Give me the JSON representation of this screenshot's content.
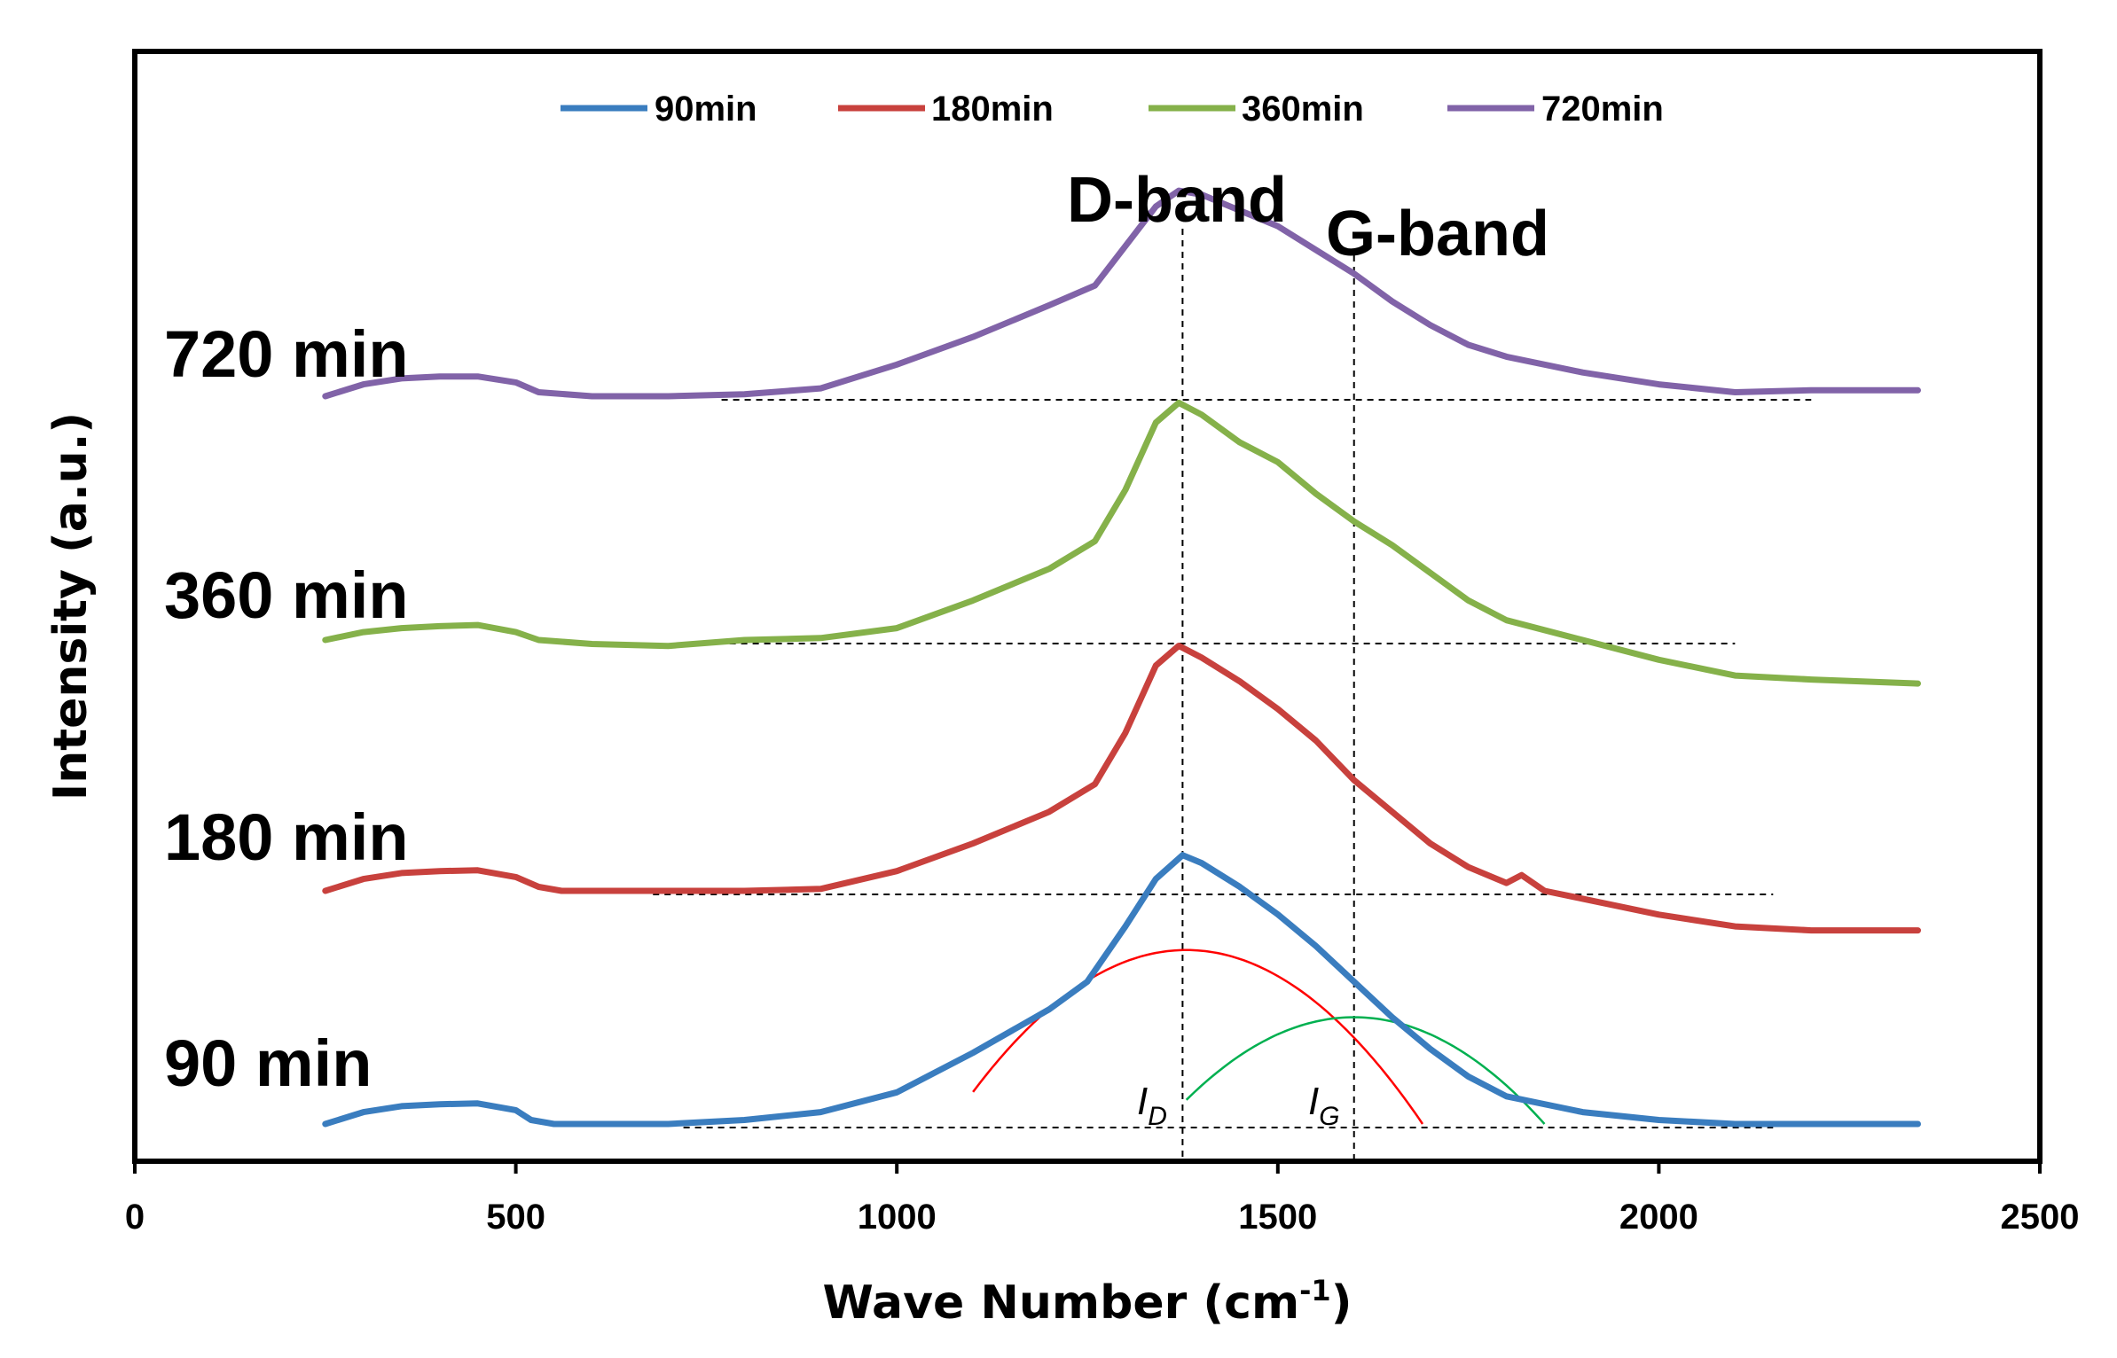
{
  "chart_data": {
    "type": "line",
    "title": "",
    "xlabel": "Wave Number (cm",
    "xlabel_sup": "-1",
    "xlabel_close": ")",
    "ylabel": "Intensity (a.u.)",
    "xlim": [
      0,
      2500
    ],
    "x_ticks": [
      "0",
      "500",
      "1000",
      "1500",
      "2000",
      "2500"
    ],
    "y_ticks": false,
    "legend_position": "top-center",
    "series": [
      {
        "name": "90min",
        "label": "90 min",
        "color": "#3a7dbf",
        "points": [
          [
            250,
            0.0
          ],
          [
            300,
            0.03
          ],
          [
            350,
            0.045
          ],
          [
            400,
            0.05
          ],
          [
            450,
            0.052
          ],
          [
            500,
            0.035
          ],
          [
            520,
            0.01
          ],
          [
            550,
            0.0
          ],
          [
            700,
            0.0
          ],
          [
            800,
            0.01
          ],
          [
            900,
            0.03
          ],
          [
            1000,
            0.08
          ],
          [
            1100,
            0.18
          ],
          [
            1200,
            0.29
          ],
          [
            1250,
            0.36
          ],
          [
            1300,
            0.5
          ],
          [
            1340,
            0.62
          ],
          [
            1375,
            0.68
          ],
          [
            1400,
            0.66
          ],
          [
            1450,
            0.6
          ],
          [
            1500,
            0.53
          ],
          [
            1550,
            0.45
          ],
          [
            1600,
            0.36
          ],
          [
            1650,
            0.27
          ],
          [
            1700,
            0.19
          ],
          [
            1750,
            0.12
          ],
          [
            1800,
            0.07
          ],
          [
            1900,
            0.03
          ],
          [
            2000,
            0.01
          ],
          [
            2100,
            0.0
          ],
          [
            2340,
            0.0
          ]
        ]
      },
      {
        "name": "180min",
        "label": "180 min",
        "color": "#c8413d",
        "points": [
          [
            250,
            0.0
          ],
          [
            300,
            0.03
          ],
          [
            350,
            0.045
          ],
          [
            400,
            0.05
          ],
          [
            450,
            0.052
          ],
          [
            500,
            0.035
          ],
          [
            530,
            0.01
          ],
          [
            560,
            0.0
          ],
          [
            700,
            0.0
          ],
          [
            800,
            0.0
          ],
          [
            900,
            0.005
          ],
          [
            1000,
            0.05
          ],
          [
            1100,
            0.12
          ],
          [
            1200,
            0.2
          ],
          [
            1260,
            0.27
          ],
          [
            1300,
            0.4
          ],
          [
            1340,
            0.57
          ],
          [
            1370,
            0.62
          ],
          [
            1400,
            0.59
          ],
          [
            1450,
            0.53
          ],
          [
            1500,
            0.46
          ],
          [
            1550,
            0.38
          ],
          [
            1600,
            0.28
          ],
          [
            1650,
            0.2
          ],
          [
            1700,
            0.12
          ],
          [
            1750,
            0.06
          ],
          [
            1800,
            0.02
          ],
          [
            1820,
            0.04
          ],
          [
            1850,
            0.0
          ],
          [
            1900,
            -0.02
          ],
          [
            2000,
            -0.06
          ],
          [
            2100,
            -0.09
          ],
          [
            2200,
            -0.1
          ],
          [
            2340,
            -0.1
          ]
        ]
      },
      {
        "name": "360min",
        "label": "360 min",
        "color": "#85b14a",
        "points": [
          [
            250,
            0.0
          ],
          [
            300,
            0.02
          ],
          [
            350,
            0.03
          ],
          [
            400,
            0.035
          ],
          [
            450,
            0.038
          ],
          [
            500,
            0.02
          ],
          [
            530,
            0.0
          ],
          [
            600,
            -0.01
          ],
          [
            700,
            -0.015
          ],
          [
            800,
            0.0
          ],
          [
            900,
            0.005
          ],
          [
            1000,
            0.03
          ],
          [
            1100,
            0.1
          ],
          [
            1200,
            0.18
          ],
          [
            1260,
            0.25
          ],
          [
            1300,
            0.38
          ],
          [
            1340,
            0.55
          ],
          [
            1370,
            0.6
          ],
          [
            1400,
            0.57
          ],
          [
            1450,
            0.5
          ],
          [
            1500,
            0.45
          ],
          [
            1550,
            0.37
          ],
          [
            1600,
            0.3
          ],
          [
            1650,
            0.24
          ],
          [
            1700,
            0.17
          ],
          [
            1750,
            0.1
          ],
          [
            1800,
            0.05
          ],
          [
            1900,
            0.0
          ],
          [
            2000,
            -0.05
          ],
          [
            2100,
            -0.09
          ],
          [
            2200,
            -0.1
          ],
          [
            2340,
            -0.11
          ]
        ]
      },
      {
        "name": "720min",
        "label": "720 min",
        "color": "#8163a8",
        "points": [
          [
            250,
            0.0
          ],
          [
            300,
            0.03
          ],
          [
            350,
            0.045
          ],
          [
            400,
            0.05
          ],
          [
            450,
            0.05
          ],
          [
            500,
            0.035
          ],
          [
            530,
            0.01
          ],
          [
            600,
            0.0
          ],
          [
            700,
            0.0
          ],
          [
            800,
            0.005
          ],
          [
            900,
            0.02
          ],
          [
            1000,
            0.08
          ],
          [
            1100,
            0.15
          ],
          [
            1200,
            0.23
          ],
          [
            1260,
            0.28
          ],
          [
            1300,
            0.38
          ],
          [
            1340,
            0.48
          ],
          [
            1370,
            0.52
          ],
          [
            1400,
            0.51
          ],
          [
            1450,
            0.47
          ],
          [
            1500,
            0.43
          ],
          [
            1550,
            0.37
          ],
          [
            1600,
            0.31
          ],
          [
            1650,
            0.24
          ],
          [
            1700,
            0.18
          ],
          [
            1750,
            0.13
          ],
          [
            1800,
            0.1
          ],
          [
            1900,
            0.06
          ],
          [
            2000,
            0.03
          ],
          [
            2100,
            0.01
          ],
          [
            2200,
            0.015
          ],
          [
            2340,
            0.015
          ]
        ]
      }
    ],
    "fit_curves": [
      {
        "name": "D-band fit",
        "color": "#ff0000",
        "center": 1380,
        "height": 0.44,
        "from": 1100,
        "to": 1690
      },
      {
        "name": "G-band fit",
        "color": "#00b050",
        "center": 1600,
        "height": 0.27,
        "from": 1380,
        "to": 1850
      }
    ],
    "baselines": [
      {
        "series": "90min",
        "x_from": 720,
        "x_to": 2150
      },
      {
        "series": "180min",
        "x_from": 680,
        "x_to": 2150
      },
      {
        "series": "360min",
        "x_from": 720,
        "x_to": 2100
      },
      {
        "series": "720min",
        "x_from": 770,
        "x_to": 2200
      }
    ],
    "annotations": {
      "d_band": {
        "text": "D-band",
        "x": 1375
      },
      "g_band": {
        "text": "G-band",
        "x": 1600
      },
      "i_d": {
        "main": "I",
        "sub": "D"
      },
      "i_g": {
        "main": "I",
        "sub": "G"
      }
    }
  }
}
